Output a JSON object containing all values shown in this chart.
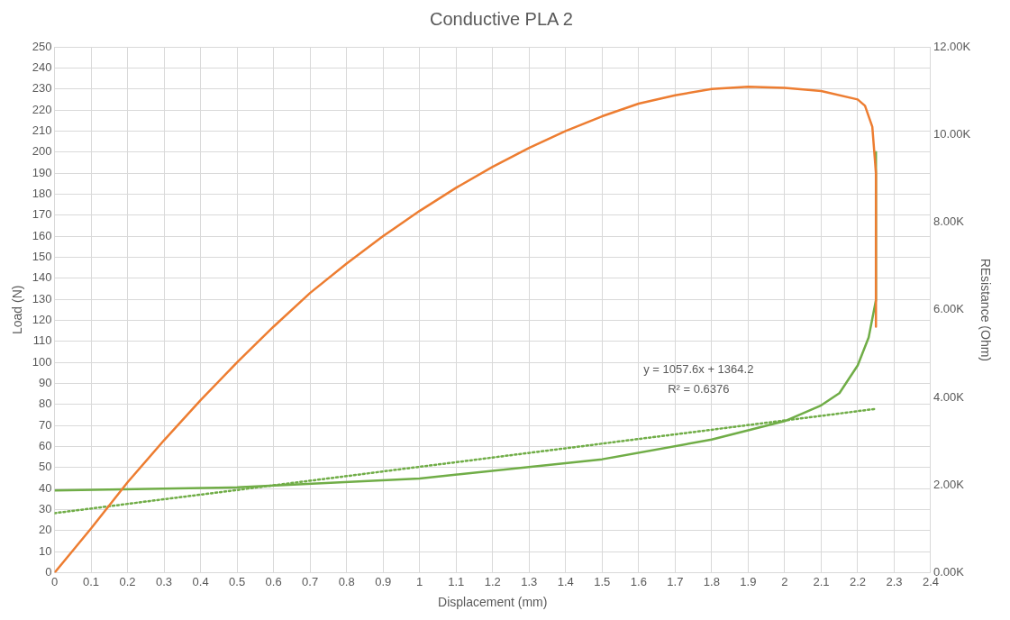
{
  "chart_data": {
    "type": "line",
    "title": "Conductive PLA 2",
    "xlabel": "Displacement (mm)",
    "ylabel": "Load (N)",
    "y2label": "REsistance (Ohm)",
    "annotations": [
      "y = 1057.6x + 1364.2",
      "R² = 0.6376"
    ],
    "xlim": [
      0,
      2.4
    ],
    "xticks": [
      0,
      0.1,
      0.2,
      0.3,
      0.4,
      0.5,
      0.6,
      0.7,
      0.8,
      0.9,
      1,
      1.1,
      1.2,
      1.3,
      1.4,
      1.5,
      1.6,
      1.7,
      1.8,
      1.9,
      2,
      2.1,
      2.2,
      2.3,
      2.4
    ],
    "ylim": [
      0,
      250
    ],
    "yticks": [
      0,
      10,
      20,
      30,
      40,
      50,
      60,
      70,
      80,
      90,
      100,
      110,
      120,
      130,
      140,
      150,
      160,
      170,
      180,
      190,
      200,
      210,
      220,
      230,
      240,
      250
    ],
    "y2lim": [
      0,
      12000
    ],
    "y2ticks": [
      {
        "value": 0,
        "label": "0.00K"
      },
      {
        "value": 2000,
        "label": "2.00K"
      },
      {
        "value": 4000,
        "label": "4.00K"
      },
      {
        "value": 6000,
        "label": "6.00K"
      },
      {
        "value": 8000,
        "label": "8.00K"
      },
      {
        "value": 10000,
        "label": "10.00K"
      },
      {
        "value": 12000,
        "label": "12.00K"
      }
    ],
    "grid": true,
    "legend": false,
    "marker": "none",
    "series": [
      {
        "color": "#ed7d31",
        "x": [
          0,
          0.1,
          0.2,
          0.3,
          0.4,
          0.5,
          0.6,
          0.7,
          0.8,
          0.9,
          1,
          1.1,
          1.2,
          1.3,
          1.4,
          1.5,
          1.6,
          1.7,
          1.8,
          1.9,
          2,
          2.1,
          2.2,
          2.22,
          2.24,
          2.25,
          2.25
        ],
        "values": [
          0,
          21,
          43,
          63,
          82,
          100,
          117,
          133,
          147,
          160,
          172,
          183,
          193,
          202,
          210,
          217,
          223,
          227,
          230,
          231,
          230.5,
          229,
          225,
          222,
          212,
          190,
          117
        ]
      },
      {
        "color": "#70ad47",
        "axis": "y2",
        "x": [
          0,
          0.5,
          1,
          1.5,
          1.8,
          2,
          2.1,
          2.15,
          2.2,
          2.23,
          2.25,
          2.25
        ],
        "values": [
          1880,
          1950,
          2150,
          2590,
          3040,
          3460,
          3820,
          4100,
          4730,
          5370,
          6220,
          9620
        ]
      },
      {
        "type": "line",
        "color": "#70ad47",
        "axis": "y2",
        "line_style": "dotted",
        "x": [
          0,
          2.25
        ],
        "values": [
          1360,
          3740
        ]
      }
    ]
  }
}
